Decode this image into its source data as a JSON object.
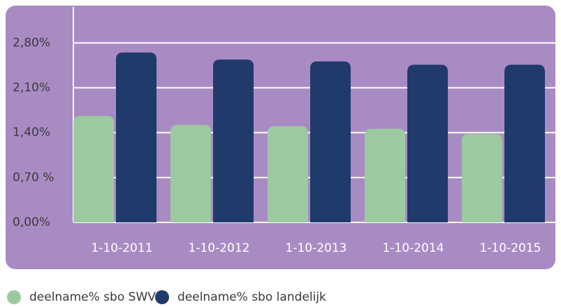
{
  "chart_data": {
    "type": "bar",
    "categories": [
      "1-10-2011",
      "1-10-2012",
      "1-10-2013",
      "1-10-2014",
      "1-10-2015"
    ],
    "series": [
      {
        "name": "deelname% sbo SWV",
        "color": "#9dc9a1",
        "values": [
          1.66,
          1.52,
          1.5,
          1.46,
          1.38
        ]
      },
      {
        "name": "deelname% sbo landelijk",
        "color": "#1f3a6b",
        "values": [
          2.65,
          2.54,
          2.51,
          2.46,
          2.46
        ]
      }
    ],
    "ylim": [
      0,
      3.36
    ],
    "yticks": [
      {
        "value": 0,
        "label": "0,00%"
      },
      {
        "value": 0.7,
        "label": "0,70 %"
      },
      {
        "value": 1.4,
        "label": "1,40%"
      },
      {
        "value": 2.1,
        "label": "2,10%"
      },
      {
        "value": 2.8,
        "label": "2,80%"
      }
    ],
    "grid": true,
    "background": "#a98bc4"
  }
}
